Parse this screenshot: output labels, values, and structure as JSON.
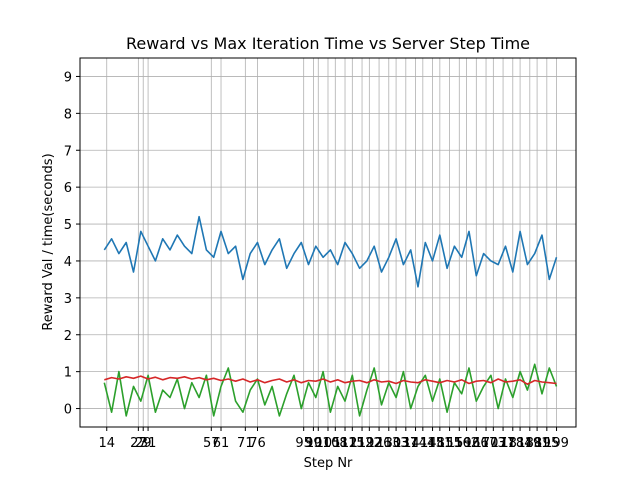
{
  "chart_data": {
    "type": "line",
    "title": "Reward vs Max Iteration Time vs Server Step Time",
    "xlabel": "Step Nr",
    "ylabel": "Reward Val / time(seconds)",
    "x": [
      13,
      16,
      19,
      22,
      25,
      28,
      31,
      34,
      37,
      40,
      43,
      46,
      49,
      52,
      55,
      58,
      61,
      64,
      67,
      70,
      73,
      76,
      79,
      82,
      85,
      88,
      91,
      94,
      97,
      100,
      103,
      106,
      109,
      112,
      115,
      118,
      121,
      124,
      127,
      130,
      133,
      136,
      139,
      142,
      145,
      148,
      151,
      154,
      157,
      160,
      163,
      166,
      169,
      172,
      175,
      178,
      181,
      184,
      187,
      190,
      193,
      196,
      199
    ],
    "series": [
      {
        "color": "#1f77b4",
        "values": [
          4.3,
          4.6,
          4.2,
          4.5,
          3.7,
          4.8,
          4.4,
          4.0,
          4.6,
          4.3,
          4.7,
          4.4,
          4.2,
          5.2,
          4.3,
          4.1,
          4.8,
          4.2,
          4.4,
          3.5,
          4.2,
          4.5,
          3.9,
          4.3,
          4.6,
          3.8,
          4.2,
          4.5,
          3.9,
          4.4,
          4.1,
          4.3,
          3.9,
          4.5,
          4.2,
          3.8,
          4.0,
          4.4,
          3.7,
          4.1,
          4.6,
          3.9,
          4.3,
          3.3,
          4.5,
          4.0,
          4.7,
          3.8,
          4.4,
          4.1,
          4.8,
          3.6,
          4.2,
          4.0,
          3.9,
          4.4,
          3.7,
          4.8,
          3.9,
          4.2,
          4.7,
          3.5,
          4.1
        ]
      },
      {
        "color": "#2ca02c",
        "values": [
          0.7,
          -0.1,
          1.0,
          -0.2,
          0.6,
          0.2,
          0.9,
          -0.1,
          0.5,
          0.3,
          0.8,
          0.0,
          0.7,
          0.3,
          0.9,
          -0.2,
          0.6,
          1.1,
          0.2,
          -0.1,
          0.5,
          0.8,
          0.1,
          0.6,
          -0.2,
          0.4,
          0.9,
          0.0,
          0.7,
          0.3,
          1.0,
          -0.1,
          0.6,
          0.2,
          0.9,
          -0.2,
          0.5,
          1.1,
          0.1,
          0.7,
          0.3,
          1.0,
          0.0,
          0.6,
          0.9,
          0.2,
          0.8,
          -0.1,
          0.7,
          0.4,
          1.1,
          0.2,
          0.6,
          0.9,
          0.0,
          0.8,
          0.3,
          1.0,
          0.5,
          1.2,
          0.4,
          1.1,
          0.6
        ]
      },
      {
        "color": "#d62728",
        "values": [
          0.78,
          0.84,
          0.8,
          0.86,
          0.82,
          0.88,
          0.8,
          0.85,
          0.78,
          0.84,
          0.82,
          0.86,
          0.8,
          0.84,
          0.78,
          0.82,
          0.76,
          0.8,
          0.74,
          0.8,
          0.72,
          0.78,
          0.7,
          0.76,
          0.8,
          0.72,
          0.78,
          0.7,
          0.76,
          0.74,
          0.8,
          0.72,
          0.78,
          0.7,
          0.74,
          0.76,
          0.7,
          0.78,
          0.72,
          0.74,
          0.68,
          0.76,
          0.72,
          0.7,
          0.78,
          0.74,
          0.7,
          0.76,
          0.72,
          0.78,
          0.68,
          0.74,
          0.76,
          0.7,
          0.8,
          0.72,
          0.74,
          0.78,
          0.66,
          0.76,
          0.72,
          0.7,
          0.68
        ]
      }
    ],
    "xlim": [
      3,
      207
    ],
    "xticks": [
      14,
      27,
      29,
      31,
      57,
      61,
      71,
      76,
      95,
      99,
      101,
      105,
      108,
      112,
      115,
      119,
      122,
      126,
      130,
      133,
      137,
      141,
      144,
      148,
      151,
      155,
      159,
      162,
      166,
      170,
      173,
      177,
      181,
      184,
      188,
      191,
      195,
      199
    ],
    "ylim": [
      -0.5,
      9.5
    ],
    "yticks": [
      0,
      1,
      2,
      3,
      4,
      5,
      6,
      7,
      8,
      9
    ],
    "grid": true
  }
}
